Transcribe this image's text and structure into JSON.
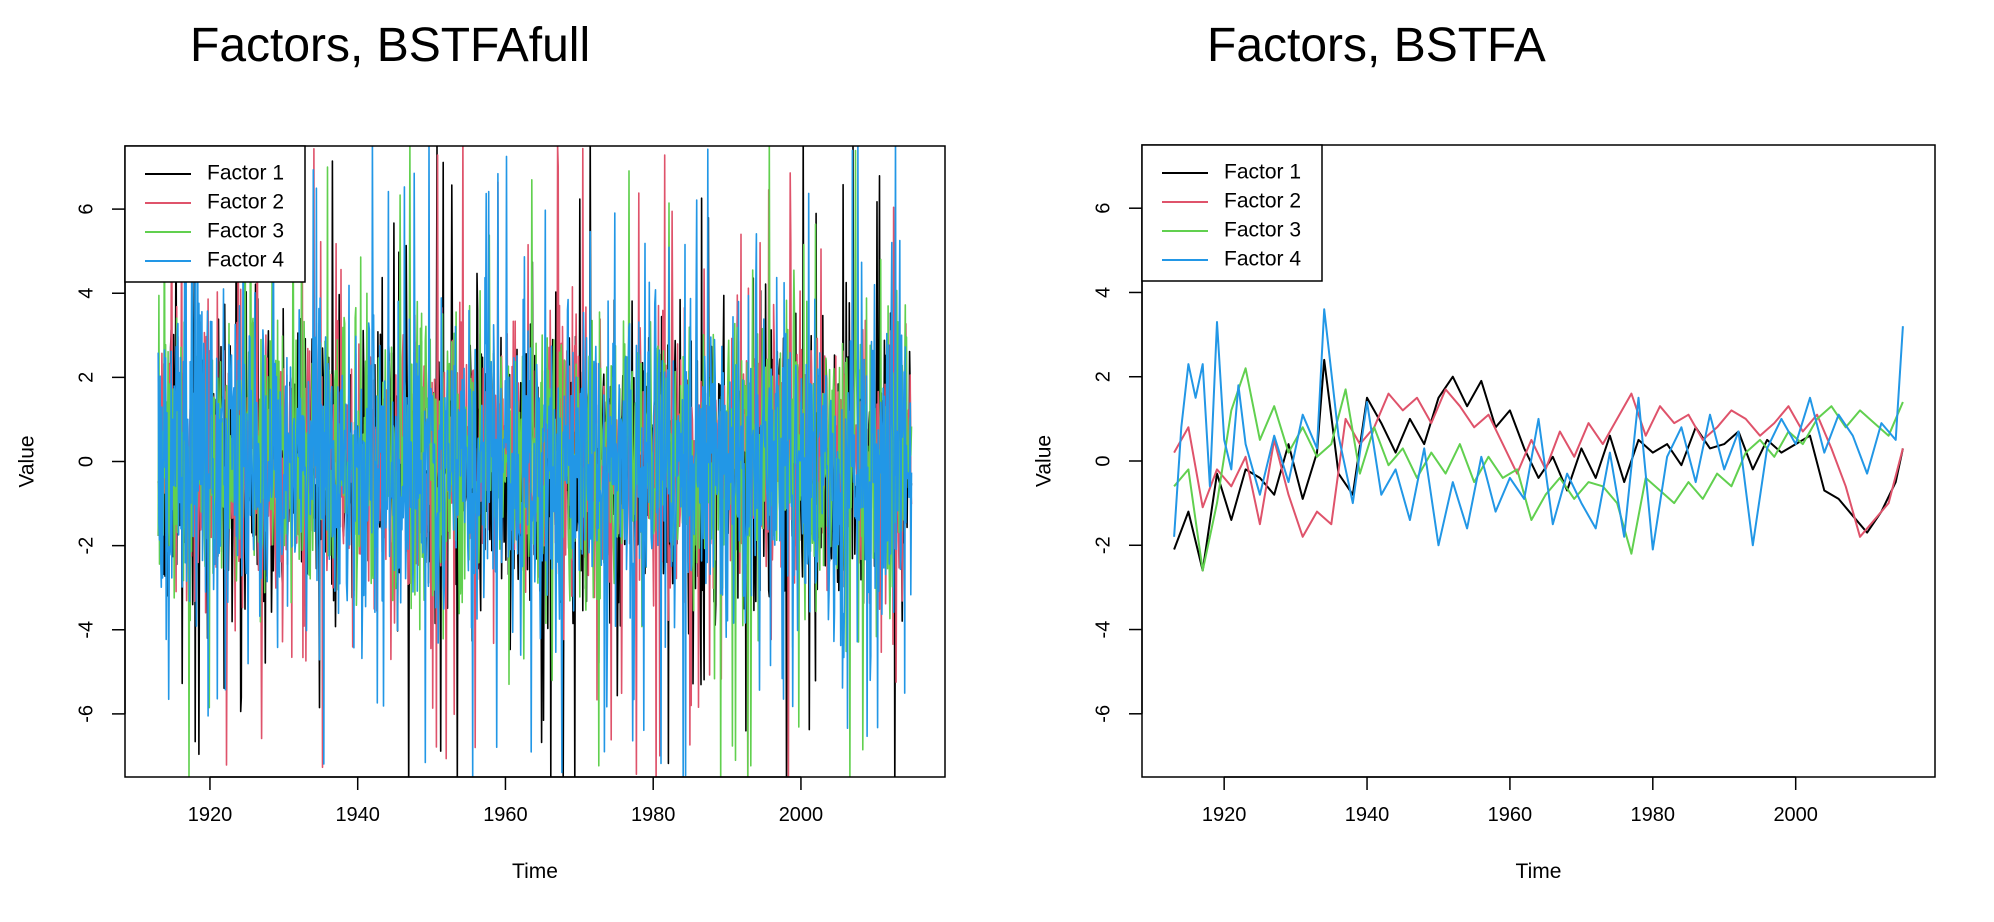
{
  "colors": {
    "factor1": "#000000",
    "factor2": "#DF536B",
    "factor3": "#61D04F",
    "factor4": "#2297E6"
  },
  "chart_data": [
    {
      "type": "line",
      "title": "Factors, BSTFAfull",
      "xlabel": "Time",
      "ylabel": "Value",
      "xlim": [
        1908.5,
        2019.5
      ],
      "ylim": [
        -7.5,
        7.5
      ],
      "x_ticks": [
        1920,
        1940,
        1960,
        1980,
        2000
      ],
      "x_tick_labels": [
        "1920",
        "1940",
        "1960",
        "1980",
        "2000"
      ],
      "y_ticks": [
        -6,
        -4,
        -2,
        0,
        2,
        4,
        6
      ],
      "y_tick_labels": [
        "-6",
        "-4",
        "-2",
        "0",
        "2",
        "4",
        "6"
      ],
      "legend": {
        "position": "top-left",
        "entries": [
          "Factor 1",
          "Factor 2",
          "Factor 3",
          "Factor 4"
        ]
      },
      "x_start": 1913,
      "x_end": 2015,
      "step": 0.0833,
      "series": [
        {
          "name": "Factor 1",
          "color": "#000000",
          "sd": 1.7,
          "spike": 0.035,
          "smooth": 0.0,
          "seed": 11
        },
        {
          "name": "Factor 2",
          "color": "#DF536B",
          "sd": 1.6,
          "spike": 0.035,
          "smooth": 0.0,
          "seed": 23
        },
        {
          "name": "Factor 3",
          "color": "#61D04F",
          "sd": 1.6,
          "spike": 0.03,
          "smooth": 0.0,
          "seed": 37
        },
        {
          "name": "Factor 4",
          "color": "#2297E6",
          "sd": 1.9,
          "spike": 0.05,
          "smooth": 0.0,
          "seed": 51
        }
      ]
    },
    {
      "type": "line",
      "title": "Factors, BSTFA",
      "xlabel": "Time",
      "ylabel": "Value",
      "xlim": [
        1908.5,
        2019.5
      ],
      "ylim": [
        -7.5,
        7.5
      ],
      "x_ticks": [
        1920,
        1940,
        1960,
        1980,
        2000
      ],
      "x_tick_labels": [
        "1920",
        "1940",
        "1960",
        "1980",
        "2000"
      ],
      "y_ticks": [
        -6,
        -4,
        -2,
        0,
        2,
        4,
        6
      ],
      "y_tick_labels": [
        "-6",
        "-4",
        "-2",
        "0",
        "2",
        "4",
        "6"
      ],
      "legend": {
        "position": "top-left",
        "entries": [
          "Factor 1",
          "Factor 2",
          "Factor 3",
          "Factor 4"
        ]
      },
      "series": [
        {
          "name": "Factor 1",
          "color": "#000000",
          "x": [
            1913,
            1915,
            1917,
            1919,
            1921,
            1923,
            1925,
            1927,
            1929,
            1931,
            1933,
            1934,
            1936,
            1938,
            1940,
            1942,
            1944,
            1946,
            1948,
            1950,
            1952,
            1954,
            1956,
            1958,
            1960,
            1962,
            1964,
            1966,
            1968,
            1970,
            1972,
            1974,
            1976,
            1978,
            1980,
            1982,
            1984,
            1986,
            1988,
            1990,
            1992,
            1994,
            1996,
            1998,
            2000,
            2002,
            2004,
            2006,
            2008,
            2010,
            2012,
            2014,
            2015
          ],
          "y": [
            -2.1,
            -1.2,
            -2.6,
            -0.3,
            -1.4,
            -0.2,
            -0.4,
            -0.8,
            0.4,
            -0.9,
            0.2,
            2.4,
            -0.3,
            -0.8,
            1.5,
            0.9,
            0.2,
            1.0,
            0.4,
            1.5,
            2.0,
            1.3,
            1.9,
            0.8,
            1.2,
            0.3,
            -0.4,
            0.1,
            -0.7,
            0.3,
            -0.4,
            0.6,
            -0.5,
            0.5,
            0.2,
            0.4,
            -0.1,
            0.8,
            0.3,
            0.4,
            0.7,
            -0.2,
            0.5,
            0.2,
            0.4,
            0.6,
            -0.7,
            -0.9,
            -1.3,
            -1.7,
            -1.2,
            -0.5,
            0.3
          ]
        },
        {
          "name": "Factor 2",
          "color": "#DF536B",
          "x": [
            1913,
            1915,
            1917,
            1919,
            1921,
            1923,
            1925,
            1927,
            1929,
            1931,
            1933,
            1935,
            1937,
            1939,
            1941,
            1943,
            1945,
            1947,
            1949,
            1951,
            1953,
            1955,
            1957,
            1959,
            1961,
            1963,
            1965,
            1967,
            1969,
            1971,
            1973,
            1975,
            1977,
            1979,
            1981,
            1983,
            1985,
            1987,
            1989,
            1991,
            1993,
            1995,
            1997,
            1999,
            2001,
            2003,
            2005,
            2007,
            2009,
            2011,
            2013,
            2015
          ],
          "y": [
            0.2,
            0.8,
            -1.1,
            -0.2,
            -0.6,
            0.1,
            -1.5,
            0.5,
            -0.8,
            -1.8,
            -1.2,
            -1.5,
            1.0,
            0.4,
            0.8,
            1.6,
            1.2,
            1.5,
            0.9,
            1.7,
            1.3,
            0.8,
            1.1,
            0.4,
            -0.3,
            0.5,
            -0.2,
            0.7,
            0.1,
            0.9,
            0.4,
            1.0,
            1.6,
            0.6,
            1.3,
            0.9,
            1.1,
            0.5,
            0.8,
            1.2,
            1.0,
            0.6,
            0.9,
            1.3,
            0.7,
            1.1,
            0.3,
            -0.6,
            -1.8,
            -1.4,
            -1.0,
            0.3
          ]
        },
        {
          "name": "Factor 3",
          "color": "#61D04F",
          "x": [
            1913,
            1915,
            1917,
            1919,
            1921,
            1923,
            1925,
            1927,
            1929,
            1931,
            1933,
            1935,
            1937,
            1939,
            1941,
            1943,
            1945,
            1947,
            1949,
            1951,
            1953,
            1955,
            1957,
            1959,
            1961,
            1963,
            1965,
            1967,
            1969,
            1971,
            1973,
            1975,
            1977,
            1979,
            1981,
            1983,
            1985,
            1987,
            1989,
            1991,
            1993,
            1995,
            1997,
            1999,
            2001,
            2003,
            2005,
            2007,
            2009,
            2011,
            2013,
            2015
          ],
          "y": [
            -0.6,
            -0.2,
            -2.6,
            -1.0,
            1.2,
            2.2,
            0.5,
            1.3,
            0.2,
            0.8,
            0.1,
            0.4,
            1.7,
            -0.3,
            0.8,
            -0.1,
            0.3,
            -0.4,
            0.2,
            -0.3,
            0.4,
            -0.5,
            0.1,
            -0.4,
            -0.2,
            -1.4,
            -0.8,
            -0.4,
            -0.9,
            -0.5,
            -0.6,
            -1.0,
            -2.2,
            -0.4,
            -0.7,
            -1.0,
            -0.5,
            -0.9,
            -0.3,
            -0.6,
            0.2,
            0.5,
            0.1,
            0.7,
            0.4,
            1.0,
            1.3,
            0.8,
            1.2,
            0.9,
            0.6,
            1.4
          ]
        },
        {
          "name": "Factor 4",
          "color": "#2297E6",
          "x": [
            1913,
            1914,
            1915,
            1916,
            1917,
            1918,
            1919,
            1920,
            1921,
            1922,
            1923,
            1925,
            1927,
            1929,
            1931,
            1933,
            1934,
            1936,
            1938,
            1940,
            1942,
            1944,
            1946,
            1948,
            1950,
            1952,
            1954,
            1956,
            1958,
            1960,
            1962,
            1964,
            1966,
            1968,
            1970,
            1972,
            1974,
            1976,
            1978,
            1980,
            1982,
            1984,
            1986,
            1988,
            1990,
            1992,
            1994,
            1996,
            1998,
            2000,
            2002,
            2004,
            2006,
            2008,
            2010,
            2012,
            2014,
            2015
          ],
          "y": [
            -1.8,
            0.8,
            2.3,
            1.5,
            2.3,
            -0.6,
            3.3,
            0.5,
            -0.2,
            1.8,
            0.4,
            -0.8,
            0.6,
            -0.5,
            1.1,
            0.3,
            3.6,
            0.6,
            -1.0,
            1.4,
            -0.8,
            -0.2,
            -1.4,
            0.3,
            -2.0,
            -0.5,
            -1.6,
            0.1,
            -1.2,
            -0.4,
            -0.9,
            1.0,
            -1.5,
            -0.3,
            -1.0,
            -1.6,
            0.2,
            -1.8,
            1.5,
            -2.1,
            0.1,
            0.8,
            -0.5,
            1.1,
            -0.2,
            0.7,
            -2.0,
            0.3,
            1.0,
            0.4,
            1.5,
            0.2,
            1.1,
            0.6,
            -0.3,
            0.9,
            0.5,
            3.2
          ]
        }
      ]
    }
  ]
}
